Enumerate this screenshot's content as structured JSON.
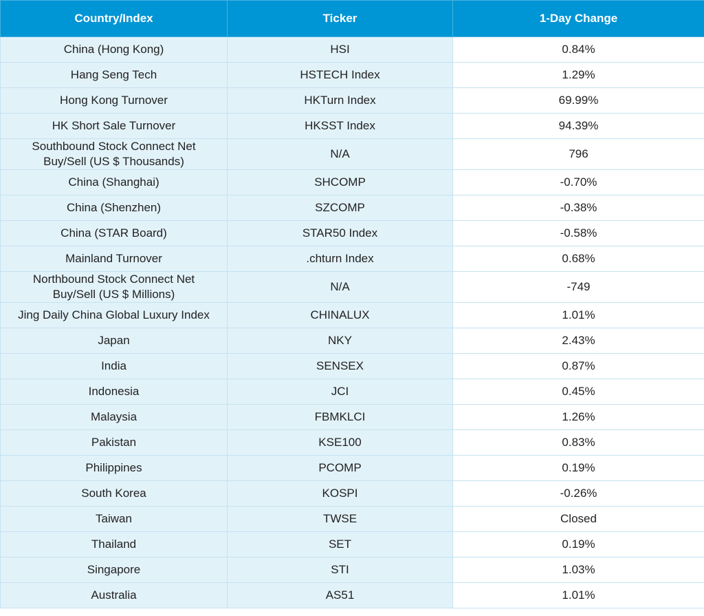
{
  "table": {
    "header": [
      "Country/Index",
      "Ticker",
      "1-Day Change"
    ],
    "rows": [
      [
        "China (Hong Kong)",
        "HSI",
        "0.84%"
      ],
      [
        "Hang Seng Tech",
        "HSTECH Index",
        "1.29%"
      ],
      [
        "Hong Kong Turnover",
        "HKTurn Index",
        "69.99%"
      ],
      [
        "HK Short Sale Turnover",
        "HKSST Index",
        "94.39%"
      ],
      [
        "Southbound Stock Connect Net Buy/Sell (US $ Thousands)",
        "N/A",
        "796"
      ],
      [
        "China (Shanghai)",
        "SHCOMP",
        "-0.70%"
      ],
      [
        "China (Shenzhen)",
        "SZCOMP",
        "-0.38%"
      ],
      [
        "China (STAR Board)",
        "STAR50 Index",
        "-0.58%"
      ],
      [
        "Mainland Turnover",
        ".chturn Index",
        "0.68%"
      ],
      [
        "Northbound Stock Connect Net Buy/Sell (US $ Millions)",
        "N/A",
        "-749"
      ],
      [
        "Jing Daily China Global Luxury Index",
        "CHINALUX",
        "1.01%"
      ],
      [
        "Japan",
        "NKY",
        "2.43%"
      ],
      [
        "India",
        "SENSEX",
        "0.87%"
      ],
      [
        "Indonesia",
        "JCI",
        "0.45%"
      ],
      [
        "Malaysia",
        "FBMKLCI",
        "1.26%"
      ],
      [
        "Pakistan",
        "KSE100",
        "0.83%"
      ],
      [
        "Philippines",
        "PCOMP",
        "0.19%"
      ],
      [
        "South Korea",
        "KOSPI",
        "-0.26%"
      ],
      [
        "Taiwan",
        "TWSE",
        "Closed"
      ],
      [
        "Thailand",
        "SET",
        "0.19%"
      ],
      [
        "Singapore",
        "STI",
        "1.03%"
      ],
      [
        "Australia",
        "AS51",
        "1.01%"
      ]
    ]
  }
}
